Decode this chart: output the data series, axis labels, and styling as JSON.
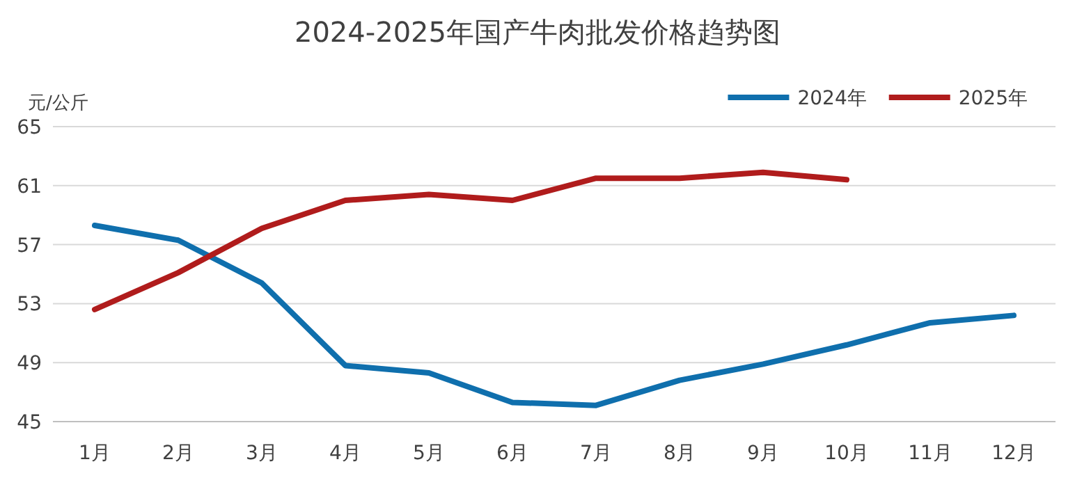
{
  "chart_data": {
    "type": "line",
    "title": "2024-2025年国产牛肉批发价格趋势图",
    "ylabel": "元/公斤",
    "categories": [
      "1月",
      "2月",
      "3月",
      "4月",
      "5月",
      "6月",
      "7月",
      "8月",
      "9月",
      "10月",
      "11月",
      "12月"
    ],
    "series": [
      {
        "name": "2024年",
        "color": "#0f6fad",
        "values": [
          58.3,
          57.3,
          54.4,
          48.8,
          48.3,
          46.3,
          46.1,
          47.8,
          48.9,
          50.2,
          51.7,
          52.2
        ]
      },
      {
        "name": "2025年",
        "color": "#b01c1c",
        "values": [
          52.6,
          55.1,
          58.1,
          60.0,
          60.4,
          60.0,
          61.5,
          61.5,
          61.9,
          61.4,
          null,
          null
        ]
      }
    ],
    "ylim": [
      45,
      65
    ],
    "yticks": [
      45,
      49,
      53,
      57,
      61,
      65
    ],
    "grid": "y",
    "legend": "top right",
    "marker": "none",
    "line_style": "solid"
  }
}
